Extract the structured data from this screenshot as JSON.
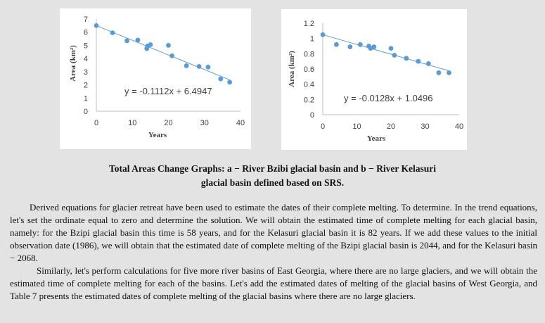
{
  "chart_data": [
    {
      "type": "scatter",
      "xlabel": "Years",
      "ylabel": "Area (km²)",
      "xlim": [
        0,
        40
      ],
      "ylim": [
        0,
        7
      ],
      "xticks": [
        0,
        10,
        20,
        30,
        40
      ],
      "yticks": [
        0,
        1,
        2,
        3,
        4,
        5,
        6,
        7
      ],
      "points": [
        [
          0,
          6.5
        ],
        [
          4.5,
          5.95
        ],
        [
          8.5,
          5.35
        ],
        [
          11.5,
          5.4
        ],
        [
          14,
          4.75
        ],
        [
          14.2,
          4.95
        ],
        [
          15,
          5.05
        ],
        [
          20,
          5.0
        ],
        [
          21,
          4.2
        ],
        [
          25,
          3.45
        ],
        [
          28.5,
          3.4
        ],
        [
          31,
          3.35
        ],
        [
          34.5,
          2.45
        ],
        [
          37,
          2.2
        ]
      ],
      "trendline": {
        "slope": -0.1112,
        "intercept": 6.4947
      },
      "equation": "y = -0.1112x + 6.4947",
      "grid": false,
      "marker_color": "#5b9bd5"
    },
    {
      "type": "scatter",
      "xlabel": "Years",
      "ylabel": "Area (km²)",
      "xlim": [
        0,
        40
      ],
      "ylim": [
        0,
        1.2
      ],
      "xticks": [
        0,
        10,
        20,
        30,
        40
      ],
      "yticks": [
        "0",
        "0.2",
        "0.4",
        "0.6",
        "0.8",
        "1",
        "1.2"
      ],
      "points": [
        [
          0,
          1.05
        ],
        [
          4,
          0.92
        ],
        [
          8,
          0.89
        ],
        [
          11,
          0.92
        ],
        [
          13.5,
          0.9
        ],
        [
          14,
          0.87
        ],
        [
          15,
          0.89
        ],
        [
          20,
          0.87
        ],
        [
          21,
          0.78
        ],
        [
          24.5,
          0.74
        ],
        [
          28,
          0.7
        ],
        [
          31,
          0.67
        ],
        [
          34,
          0.55
        ],
        [
          37,
          0.55
        ]
      ],
      "trendline": {
        "slope": -0.0128,
        "intercept": 1.0496
      },
      "equation": "y = -0.0128x + 1.0496",
      "grid": false,
      "marker_color": "#5b9bd5"
    }
  ],
  "caption": {
    "line1": "Total Areas Change Graphs: a − River Bzibi glacial basin and b − River Kelasuri",
    "line2": "glacial basin defined based on SRS."
  },
  "paragraphs": [
    "Derived equations for glacier retreat have been used to estimate the dates of their complete melting. To determine. In the trend equations, let's set the ordinate equal to zero and determine the solution. We will obtain the estimated time of complete melting for each glacial basin, namely: for the Bzipi glacial basin this time is 58 years, and for the Kelasuri glacial basin it is 82 years. If we add these values to the initial observation date (1986), we will obtain that the estimated date of complete melting of the Bzipi glacial basin is 2044, and for the Kelasuri basin − 2068.",
    "Similarly, let's perform calculations for five more river basins of East Georgia, where there are no large glaciers, and we will obtain the estimated time of complete melting for each of the basins. Let's add the estimated dates of melting of the glacial basins of West Georgia, and Table 7 presents the estimated dates of complete melting of the glacial basins where there are no large glaciers."
  ]
}
